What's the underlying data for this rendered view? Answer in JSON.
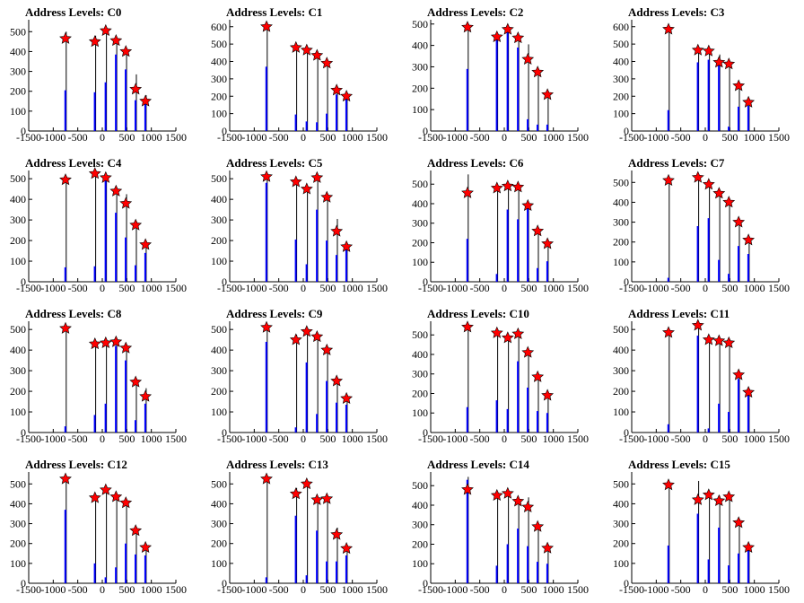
{
  "chart_data": [
    {
      "type": "bar",
      "title": "Address Levels: C0",
      "ylim": [
        0,
        560
      ],
      "yticks": [
        100,
        200,
        300,
        400,
        500
      ],
      "xlim": [
        -1500,
        1500
      ],
      "xticks": [
        -1500,
        -1000,
        -500,
        0,
        500,
        1000,
        1500
      ],
      "xtick_labels": [
        "-1500",
        "-1000",
        "-500",
        "0",
        "500",
        "1000",
        "1500"
      ],
      "peaks": [
        {
          "x": -750,
          "y": 465
        },
        {
          "x": -150,
          "y": 450
        },
        {
          "x": 70,
          "y": 505
        },
        {
          "x": 280,
          "y": 455
        },
        {
          "x": 480,
          "y": 400
        },
        {
          "x": 680,
          "y": 210
        },
        {
          "x": 880,
          "y": 150
        }
      ],
      "blue_values": [
        205,
        195,
        245,
        385,
        310,
        155,
        170
      ],
      "black_values": [
        500,
        480,
        510,
        460,
        410,
        285,
        180
      ]
    },
    {
      "type": "bar",
      "title": "Address Levels: C1",
      "ylim": [
        0,
        640
      ],
      "yticks": [
        100,
        200,
        300,
        400,
        500,
        600
      ],
      "xlim": [
        -1500,
        1500
      ],
      "xticks": [
        -1500,
        -1000,
        -500,
        0,
        500,
        1000,
        1500
      ],
      "xtick_labels": [
        "-1500",
        "-1000",
        "-500",
        "0",
        "500",
        "1000",
        "1500"
      ],
      "peaks": [
        {
          "x": -750,
          "y": 600
        },
        {
          "x": -150,
          "y": 480
        },
        {
          "x": 70,
          "y": 465
        },
        {
          "x": 280,
          "y": 435
        },
        {
          "x": 480,
          "y": 390
        },
        {
          "x": 680,
          "y": 235
        },
        {
          "x": 880,
          "y": 200
        }
      ],
      "blue_values": [
        370,
        95,
        55,
        50,
        100,
        210,
        185
      ],
      "black_values": [
        625,
        490,
        470,
        440,
        400,
        245,
        205
      ]
    },
    {
      "type": "bar",
      "title": "Address Levels: C2",
      "ylim": [
        0,
        520
      ],
      "yticks": [
        100,
        200,
        300,
        400,
        500
      ],
      "xlim": [
        -1500,
        1500
      ],
      "xticks": [
        -1500,
        -1000,
        -500,
        0,
        500,
        1000,
        1500
      ],
      "xtick_labels": [
        "-1500",
        "-1000",
        "-500",
        "0",
        "500",
        "1000",
        "1500"
      ],
      "peaks": [
        {
          "x": -750,
          "y": 485
        },
        {
          "x": -150,
          "y": 440
        },
        {
          "x": 70,
          "y": 475
        },
        {
          "x": 280,
          "y": 435
        },
        {
          "x": 480,
          "y": 335
        },
        {
          "x": 680,
          "y": 275
        },
        {
          "x": 880,
          "y": 170
        }
      ],
      "blue_values": [
        290,
        430,
        470,
        390,
        55,
        30,
        30
      ],
      "black_values": [
        490,
        455,
        480,
        440,
        405,
        280,
        175
      ]
    },
    {
      "type": "bar",
      "title": "Address Levels: C3",
      "ylim": [
        0,
        640
      ],
      "yticks": [
        100,
        200,
        300,
        400,
        500,
        600
      ],
      "xlim": [
        -1500,
        1500
      ],
      "xticks": [
        -1500,
        -1000,
        -500,
        0,
        500,
        1000,
        1500
      ],
      "xtick_labels": [
        "-1500",
        "-1000",
        "-500",
        "0",
        "500",
        "1000",
        "1500"
      ],
      "peaks": [
        {
          "x": -750,
          "y": 585
        },
        {
          "x": -150,
          "y": 465
        },
        {
          "x": 70,
          "y": 460
        },
        {
          "x": 280,
          "y": 395
        },
        {
          "x": 480,
          "y": 385
        },
        {
          "x": 680,
          "y": 260
        },
        {
          "x": 880,
          "y": 165
        }
      ],
      "blue_values": [
        120,
        395,
        410,
        420,
        25,
        140,
        145
      ],
      "black_values": [
        600,
        470,
        465,
        440,
        390,
        265,
        170
      ]
    },
    {
      "type": "bar",
      "title": "Address Levels: C4",
      "ylim": [
        0,
        540
      ],
      "yticks": [
        100,
        200,
        300,
        400,
        500
      ],
      "xlim": [
        -1500,
        1500
      ],
      "xticks": [
        -1500,
        -1000,
        -500,
        0,
        500,
        1000,
        1500
      ],
      "xtick_labels": [
        "-1500",
        "-1000",
        "-500",
        "0",
        "500",
        "1000",
        "1500"
      ],
      "peaks": [
        {
          "x": -750,
          "y": 495
        },
        {
          "x": -150,
          "y": 525
        },
        {
          "x": 70,
          "y": 505
        },
        {
          "x": 280,
          "y": 440
        },
        {
          "x": 480,
          "y": 380
        },
        {
          "x": 680,
          "y": 275
        },
        {
          "x": 880,
          "y": 180
        }
      ],
      "blue_values": [
        70,
        75,
        500,
        335,
        215,
        80,
        140
      ],
      "black_values": [
        500,
        530,
        510,
        445,
        425,
        280,
        185
      ]
    },
    {
      "type": "bar",
      "title": "Address Levels: C5",
      "ylim": [
        0,
        540
      ],
      "yticks": [
        100,
        200,
        300,
        400,
        500
      ],
      "xlim": [
        -1500,
        1500
      ],
      "xticks": [
        -1500,
        -1000,
        -500,
        0,
        500,
        1000,
        1500
      ],
      "xtick_labels": [
        "-1500",
        "-1000",
        "-500",
        "0",
        "500",
        "1000",
        "1500"
      ],
      "peaks": [
        {
          "x": -750,
          "y": 510
        },
        {
          "x": -150,
          "y": 485
        },
        {
          "x": 70,
          "y": 450
        },
        {
          "x": 280,
          "y": 505
        },
        {
          "x": 480,
          "y": 410
        },
        {
          "x": 680,
          "y": 245
        },
        {
          "x": 880,
          "y": 170
        }
      ],
      "blue_values": [
        480,
        205,
        85,
        350,
        200,
        130,
        180
      ],
      "black_values": [
        520,
        490,
        455,
        510,
        420,
        305,
        175
      ]
    },
    {
      "type": "bar",
      "title": "Address Levels: C6",
      "ylim": [
        0,
        570
      ],
      "yticks": [
        100,
        200,
        300,
        400,
        500
      ],
      "xlim": [
        -1500,
        1500
      ],
      "xticks": [
        -1500,
        -1000,
        -500,
        0,
        500,
        1000,
        1500
      ],
      "xtick_labels": [
        "-1500",
        "-1000",
        "-500",
        "0",
        "500",
        "1000",
        "1500"
      ],
      "peaks": [
        {
          "x": -750,
          "y": 455
        },
        {
          "x": -150,
          "y": 480
        },
        {
          "x": 70,
          "y": 490
        },
        {
          "x": 280,
          "y": 485
        },
        {
          "x": 480,
          "y": 390
        },
        {
          "x": 680,
          "y": 260
        },
        {
          "x": 880,
          "y": 195
        }
      ],
      "blue_values": [
        220,
        40,
        370,
        320,
        380,
        70,
        105
      ],
      "black_values": [
        550,
        485,
        495,
        490,
        395,
        265,
        200
      ]
    },
    {
      "type": "bar",
      "title": "Address Levels: C7",
      "ylim": [
        0,
        560
      ],
      "yticks": [
        100,
        200,
        300,
        400,
        500
      ],
      "xlim": [
        -1500,
        1500
      ],
      "xticks": [
        -1500,
        -1000,
        -500,
        0,
        500,
        1000,
        1500
      ],
      "xtick_labels": [
        "-1500",
        "-1000",
        "-500",
        "0",
        "500",
        "1000",
        "1500"
      ],
      "peaks": [
        {
          "x": -750,
          "y": 510
        },
        {
          "x": -150,
          "y": 525
        },
        {
          "x": 70,
          "y": 490
        },
        {
          "x": 280,
          "y": 445
        },
        {
          "x": 480,
          "y": 400
        },
        {
          "x": 680,
          "y": 300
        },
        {
          "x": 880,
          "y": 210
        }
      ],
      "blue_values": [
        20,
        280,
        320,
        110,
        40,
        180,
        140
      ],
      "black_values": [
        520,
        530,
        495,
        450,
        420,
        305,
        215
      ]
    },
    {
      "type": "bar",
      "title": "Address Levels: C8",
      "ylim": [
        0,
        540
      ],
      "yticks": [
        100,
        200,
        300,
        400,
        500
      ],
      "xlim": [
        -1500,
        1500
      ],
      "xticks": [
        -1500,
        -1000,
        -500,
        0,
        500,
        1000,
        1500
      ],
      "xtick_labels": [
        "-1500",
        "-1000",
        "-500",
        "0",
        "500",
        "1000",
        "1500"
      ],
      "peaks": [
        {
          "x": -750,
          "y": 505
        },
        {
          "x": -150,
          "y": 430
        },
        {
          "x": 70,
          "y": 435
        },
        {
          "x": 280,
          "y": 440
        },
        {
          "x": 480,
          "y": 410
        },
        {
          "x": 680,
          "y": 245
        },
        {
          "x": 880,
          "y": 175
        }
      ],
      "blue_values": [
        30,
        85,
        140,
        420,
        350,
        60,
        140
      ],
      "black_values": [
        510,
        445,
        450,
        445,
        415,
        255,
        215
      ]
    },
    {
      "type": "bar",
      "title": "Address Levels: C9",
      "ylim": [
        0,
        540
      ],
      "yticks": [
        100,
        200,
        300,
        400,
        500
      ],
      "xlim": [
        -1500,
        1500
      ],
      "xticks": [
        -1500,
        -1000,
        -500,
        0,
        500,
        1000,
        1500
      ],
      "xtick_labels": [
        "-1500",
        "-1000",
        "-500",
        "0",
        "500",
        "1000",
        "1500"
      ],
      "peaks": [
        {
          "x": -750,
          "y": 510
        },
        {
          "x": -150,
          "y": 450
        },
        {
          "x": 70,
          "y": 490
        },
        {
          "x": 280,
          "y": 465
        },
        {
          "x": 480,
          "y": 400
        },
        {
          "x": 680,
          "y": 250
        },
        {
          "x": 880,
          "y": 165
        }
      ],
      "blue_values": [
        440,
        25,
        340,
        90,
        250,
        145,
        135
      ],
      "black_values": [
        520,
        475,
        495,
        470,
        410,
        255,
        170
      ]
    },
    {
      "type": "bar",
      "title": "Address Levels: C10",
      "ylim": [
        0,
        570
      ],
      "yticks": [
        100,
        200,
        300,
        400,
        500
      ],
      "xlim": [
        -1500,
        1500
      ],
      "xticks": [
        -1500,
        -1000,
        -500,
        0,
        500,
        1000,
        1500
      ],
      "xtick_labels": [
        "-1500",
        "-1000",
        "-500",
        "0",
        "500",
        "1000",
        "1500"
      ],
      "peaks": [
        {
          "x": -750,
          "y": 540
        },
        {
          "x": -150,
          "y": 510
        },
        {
          "x": 70,
          "y": 485
        },
        {
          "x": 280,
          "y": 505
        },
        {
          "x": 480,
          "y": 410
        },
        {
          "x": 680,
          "y": 285
        },
        {
          "x": 880,
          "y": 190
        }
      ],
      "blue_values": [
        130,
        165,
        120,
        365,
        230,
        110,
        100
      ],
      "black_values": [
        550,
        520,
        495,
        510,
        420,
        295,
        195
      ]
    },
    {
      "type": "bar",
      "title": "Address Levels: C11",
      "ylim": [
        0,
        540
      ],
      "yticks": [
        100,
        200,
        300,
        400,
        500
      ],
      "xlim": [
        -1500,
        1500
      ],
      "xticks": [
        -1500,
        -1000,
        -500,
        0,
        500,
        1000,
        1500
      ],
      "xtick_labels": [
        "-1500",
        "-1000",
        "-500",
        "0",
        "500",
        "1000",
        "1500"
      ],
      "peaks": [
        {
          "x": -750,
          "y": 485
        },
        {
          "x": -150,
          "y": 520
        },
        {
          "x": 70,
          "y": 450
        },
        {
          "x": 280,
          "y": 445
        },
        {
          "x": 480,
          "y": 435
        },
        {
          "x": 680,
          "y": 280
        },
        {
          "x": 880,
          "y": 195
        }
      ],
      "blue_values": [
        40,
        470,
        20,
        140,
        100,
        260,
        185
      ],
      "black_values": [
        490,
        525,
        470,
        455,
        440,
        285,
        200
      ]
    },
    {
      "type": "bar",
      "title": "Address Levels: C12",
      "ylim": [
        0,
        560
      ],
      "yticks": [
        100,
        200,
        300,
        400,
        500
      ],
      "xlim": [
        -1500,
        1500
      ],
      "xticks": [
        -1500,
        -1000,
        -500,
        0,
        500,
        1000,
        1500
      ],
      "xtick_labels": [
        "-1500",
        "-1000",
        "-500",
        "0",
        "500",
        "1000",
        "1500"
      ],
      "peaks": [
        {
          "x": -750,
          "y": 525
        },
        {
          "x": -150,
          "y": 430
        },
        {
          "x": 70,
          "y": 470
        },
        {
          "x": 280,
          "y": 435
        },
        {
          "x": 480,
          "y": 405
        },
        {
          "x": 680,
          "y": 265
        },
        {
          "x": 880,
          "y": 180
        }
      ],
      "blue_values": [
        370,
        100,
        30,
        80,
        200,
        145,
        140
      ],
      "black_values": [
        535,
        445,
        490,
        440,
        415,
        275,
        190
      ]
    },
    {
      "type": "bar",
      "title": "Address Levels: C13",
      "ylim": [
        0,
        560
      ],
      "yticks": [
        100,
        200,
        300,
        400,
        500
      ],
      "xlim": [
        -1500,
        1500
      ],
      "xticks": [
        -1500,
        -1000,
        -500,
        0,
        500,
        1000,
        1500
      ],
      "xtick_labels": [
        "-1500",
        "-1000",
        "-500",
        "0",
        "500",
        "1000",
        "1500"
      ],
      "peaks": [
        {
          "x": -750,
          "y": 525
        },
        {
          "x": -150,
          "y": 450
        },
        {
          "x": 70,
          "y": 500
        },
        {
          "x": 280,
          "y": 420
        },
        {
          "x": 480,
          "y": 425
        },
        {
          "x": 680,
          "y": 245
        },
        {
          "x": 880,
          "y": 175
        }
      ],
      "blue_values": [
        30,
        340,
        40,
        265,
        110,
        110,
        140
      ],
      "black_values": [
        530,
        480,
        505,
        425,
        430,
        280,
        190
      ]
    },
    {
      "type": "bar",
      "title": "Address Levels: C14",
      "ylim": [
        0,
        570
      ],
      "yticks": [
        100,
        200,
        300,
        400,
        500
      ],
      "xlim": [
        -1500,
        1500
      ],
      "xticks": [
        -1500,
        -1000,
        -500,
        0,
        500,
        1000,
        1500
      ],
      "xtick_labels": [
        "-1500",
        "-1000",
        "-500",
        "0",
        "500",
        "1000",
        "1500"
      ],
      "peaks": [
        {
          "x": -750,
          "y": 480
        },
        {
          "x": -150,
          "y": 450
        },
        {
          "x": 70,
          "y": 460
        },
        {
          "x": 280,
          "y": 420
        },
        {
          "x": 480,
          "y": 390
        },
        {
          "x": 680,
          "y": 290
        },
        {
          "x": 880,
          "y": 180
        }
      ],
      "blue_values": [
        530,
        90,
        200,
        280,
        190,
        110,
        100
      ],
      "black_values": [
        545,
        460,
        470,
        425,
        440,
        295,
        185
      ]
    },
    {
      "type": "bar",
      "title": "Address Levels: C15",
      "ylim": [
        0,
        560
      ],
      "yticks": [
        100,
        200,
        300,
        400,
        500
      ],
      "xlim": [
        -1500,
        1500
      ],
      "xticks": [
        -1500,
        -1000,
        -500,
        0,
        500,
        1000,
        1500
      ],
      "xtick_labels": [
        "-1500",
        "-1000",
        "-500",
        "0",
        "500",
        "1000",
        "1500"
      ],
      "peaks": [
        {
          "x": -750,
          "y": 495
        },
        {
          "x": -150,
          "y": 420
        },
        {
          "x": 70,
          "y": 445
        },
        {
          "x": 280,
          "y": 415
        },
        {
          "x": 480,
          "y": 435
        },
        {
          "x": 680,
          "y": 305
        },
        {
          "x": 880,
          "y": 180
        }
      ],
      "blue_values": [
        190,
        350,
        120,
        280,
        90,
        150,
        180
      ],
      "black_values": [
        500,
        515,
        460,
        440,
        440,
        310,
        185
      ]
    }
  ],
  "colors": {
    "blue_bar": "#0000ff",
    "black_bar": "#000000",
    "marker": "#ff0000",
    "marker_edge": "#000000",
    "axis": "#000000"
  }
}
